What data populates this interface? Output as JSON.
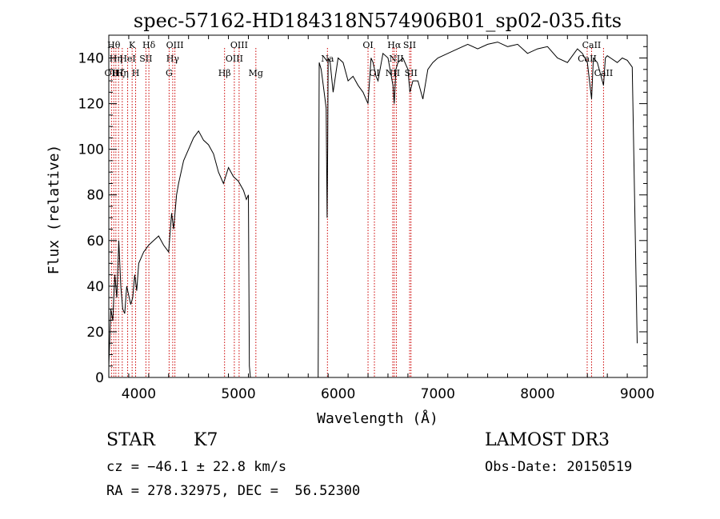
{
  "chart_data": {
    "type": "line",
    "title": "spec-57162-HD184318N574906B01_sp02-035.fits",
    "xlabel": "Wavelength (Å)",
    "ylabel": "Flux (relative)",
    "xlim": [
      3700,
      9100
    ],
    "ylim": [
      0,
      150
    ],
    "xticks": [
      4000,
      5000,
      6000,
      7000,
      8000,
      9000
    ],
    "yticks": [
      0,
      20,
      40,
      60,
      80,
      100,
      120,
      140
    ],
    "grid": false,
    "line_color": "#000000",
    "marker_color": "#cc0000",
    "series": [
      {
        "x": [
          3700,
          3720,
          3740,
          3760,
          3780,
          3800,
          3820,
          3840,
          3860,
          3880,
          3900,
          3920,
          3940,
          3960,
          3980,
          4000,
          4050,
          4100,
          4150,
          4200,
          4250,
          4300,
          4330,
          4350,
          4380,
          4400,
          4450,
          4500,
          4550,
          4600,
          4650,
          4700,
          4750,
          4800,
          4850,
          4900,
          4950,
          5000,
          5050,
          5080,
          5100,
          5110,
          5120,
          5800,
          5810,
          5830,
          5860,
          5880,
          5890,
          5895,
          5900,
          5920,
          5950,
          6000,
          6050,
          6100,
          6150,
          6200,
          6250,
          6300,
          6330,
          6350,
          6380,
          6400,
          6450,
          6500,
          6550,
          6563,
          6580,
          6600,
          6650,
          6700,
          6720,
          6750,
          6800,
          6850,
          6900,
          6950,
          7000,
          7100,
          7200,
          7300,
          7400,
          7500,
          7600,
          7700,
          7800,
          7900,
          8000,
          8100,
          8200,
          8300,
          8400,
          8450,
          8500,
          8542,
          8560,
          8600,
          8662,
          8680,
          8700,
          8800,
          8850,
          8900,
          8950,
          9000
        ],
        "values": [
          5,
          30,
          25,
          45,
          35,
          60,
          40,
          30,
          28,
          40,
          36,
          32,
          35,
          45,
          38,
          50,
          55,
          58,
          60,
          62,
          58,
          55,
          72,
          65,
          80,
          85,
          95,
          100,
          105,
          108,
          104,
          102,
          98,
          90,
          85,
          92,
          88,
          86,
          82,
          78,
          80,
          5,
          0,
          0,
          138,
          135,
          125,
          118,
          70,
          100,
          140,
          138,
          125,
          140,
          138,
          130,
          132,
          128,
          125,
          120,
          140,
          138,
          132,
          130,
          142,
          140,
          128,
          120,
          135,
          138,
          140,
          135,
          125,
          130,
          130,
          122,
          135,
          138,
          140,
          142,
          144,
          146,
          144,
          146,
          147,
          145,
          146,
          142,
          144,
          145,
          140,
          138,
          144,
          142,
          138,
          122,
          140,
          138,
          128,
          140,
          141,
          138,
          140,
          139,
          136,
          15
        ]
      }
    ],
    "line_markers": [
      {
        "x": 3727,
        "label": "OII",
        "row": 3
      },
      {
        "x": 3750,
        "label": "Hθ",
        "row": 1
      },
      {
        "x": 3771,
        "label": "Hη",
        "row": 2
      },
      {
        "x": 3798,
        "label": "Hζ",
        "row": 3
      },
      {
        "x": 3835,
        "label": "Hη",
        "row": 3
      },
      {
        "x": 3889,
        "label": "HeI",
        "row": 2
      },
      {
        "x": 3934,
        "label": "K",
        "row": 1
      },
      {
        "x": 3969,
        "label": "H",
        "row": 3
      },
      {
        "x": 4072,
        "label": "SII",
        "row": 2
      },
      {
        "x": 4102,
        "label": "Hδ",
        "row": 1
      },
      {
        "x": 4305,
        "label": "G",
        "row": 3
      },
      {
        "x": 4341,
        "label": "Hγ",
        "row": 2
      },
      {
        "x": 4363,
        "label": "OIII",
        "row": 1
      },
      {
        "x": 4861,
        "label": "Hβ",
        "row": 3
      },
      {
        "x": 4959,
        "label": "OIII",
        "row": 2
      },
      {
        "x": 5007,
        "label": "OIII",
        "row": 1
      },
      {
        "x": 5175,
        "label": "Mg",
        "row": 3
      },
      {
        "x": 5893,
        "label": "Na",
        "row": 2
      },
      {
        "x": 6300,
        "label": "OI",
        "row": 1
      },
      {
        "x": 6364,
        "label": "OI",
        "row": 3
      },
      {
        "x": 6548,
        "label": "NII",
        "row": 3
      },
      {
        "x": 6563,
        "label": "Hα",
        "row": 1
      },
      {
        "x": 6584,
        "label": "NII",
        "row": 2
      },
      {
        "x": 6717,
        "label": "SII",
        "row": 1
      },
      {
        "x": 6731,
        "label": "SII",
        "row": 3
      },
      {
        "x": 8498,
        "label": "CaII",
        "row": 2
      },
      {
        "x": 8542,
        "label": "CaII",
        "row": 1
      },
      {
        "x": 8662,
        "label": "CaII",
        "row": 3
      }
    ]
  },
  "info": {
    "class": "STAR",
    "subclass": "K7",
    "survey": "LAMOST DR3",
    "cz": "cz = −46.1 ± 22.8 km/s",
    "obs_date": "Obs-Date: 20150519",
    "coords": "RA = 278.32975, DEC =  56.52300"
  }
}
